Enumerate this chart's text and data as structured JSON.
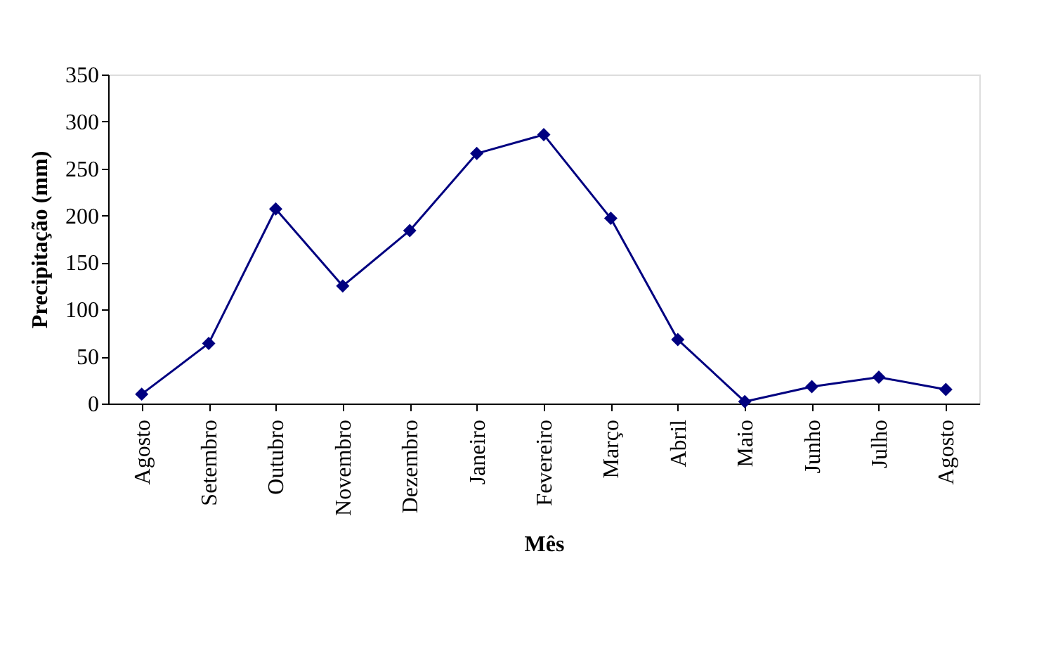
{
  "chart_data": {
    "type": "line",
    "xlabel": "Mês",
    "ylabel": "Precipitação (mm)",
    "categories": [
      "Agosto",
      "Setembro",
      "Outubro",
      "Novembro",
      "Dezembro",
      "Janeiro",
      "Fevereiro",
      "Março",
      "Abril",
      "Maio",
      "Junho",
      "Julho",
      "Agosto"
    ],
    "series": [
      {
        "color": "#000080",
        "values": [
          10,
          64,
          207,
          125,
          184,
          266,
          286,
          197,
          68,
          2,
          18,
          28,
          15
        ]
      }
    ],
    "ylim": [
      0,
      350
    ],
    "yticks": [
      0,
      50,
      100,
      150,
      200,
      250,
      300,
      350
    ],
    "marker": "diamond",
    "line_style": "solid",
    "grid": false
  }
}
